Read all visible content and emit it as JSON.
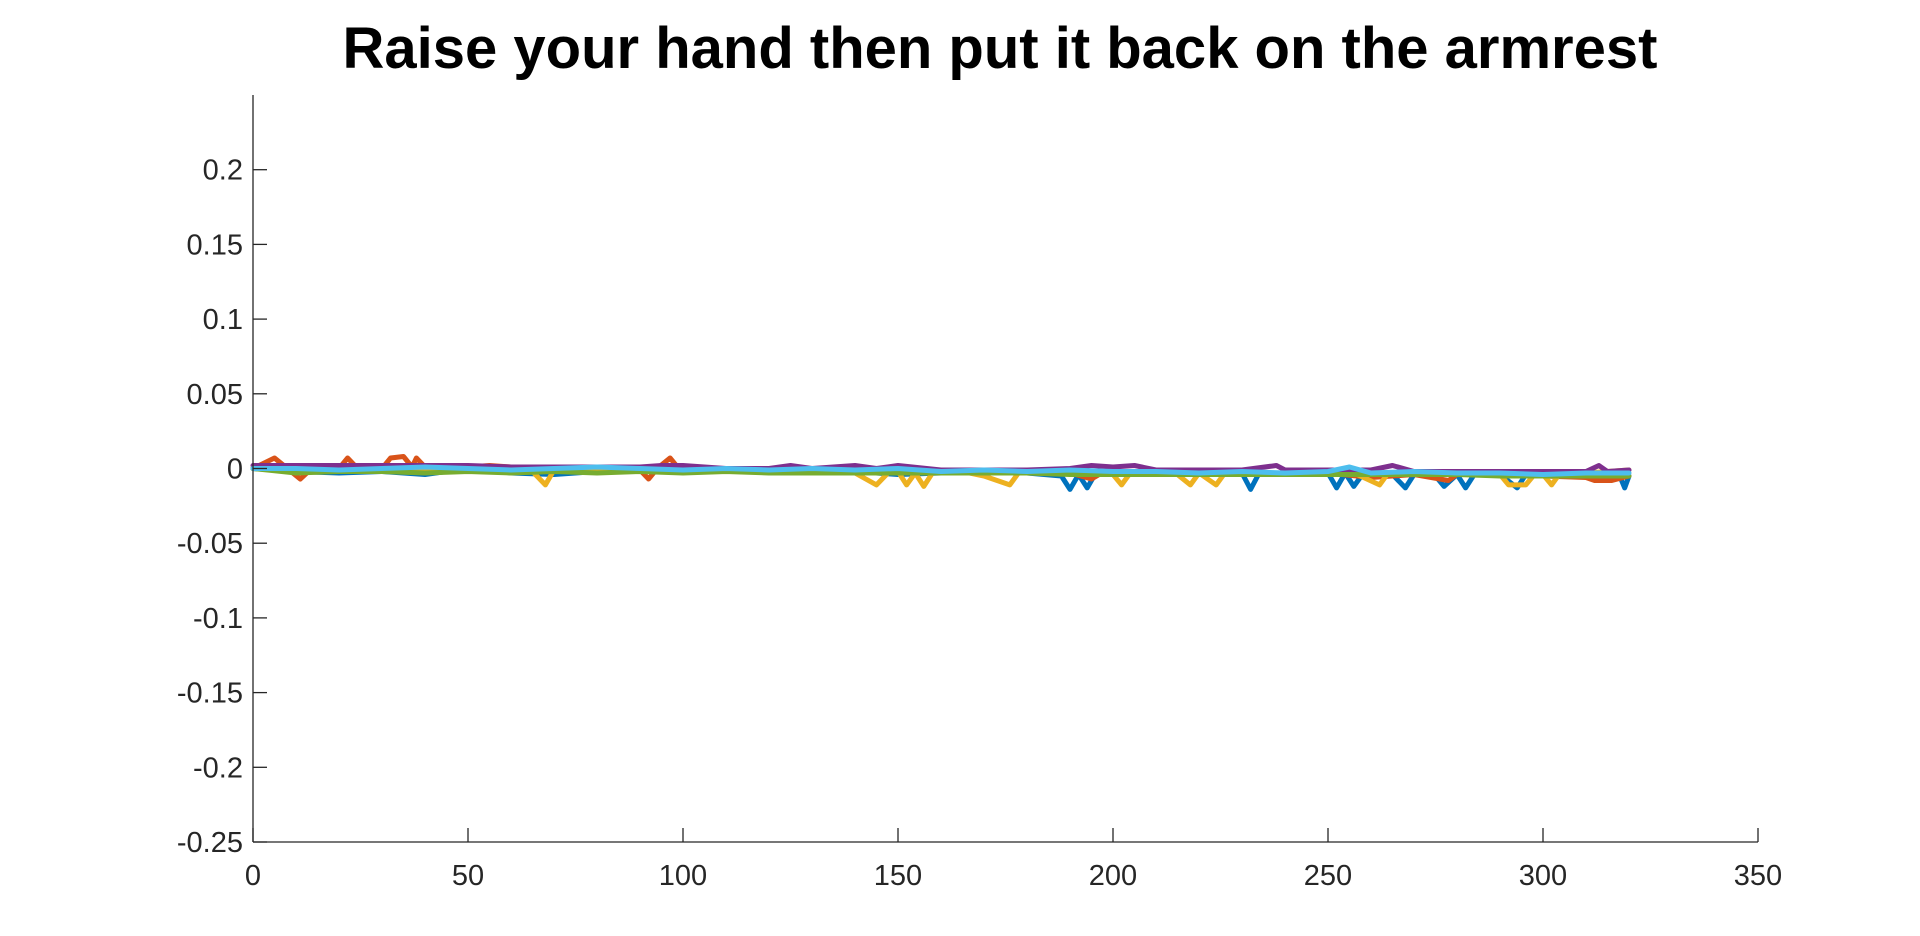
{
  "chart_data": {
    "type": "line",
    "title": "Raise your hand then put it back on the armrest",
    "xlabel": "",
    "ylabel": "",
    "xlim": [
      0,
      350
    ],
    "ylim": [
      -0.25,
      0.25
    ],
    "xticks": [
      0,
      50,
      100,
      150,
      200,
      250,
      300,
      350
    ],
    "yticks": [
      -0.25,
      -0.2,
      -0.15,
      -0.1,
      -0.05,
      0,
      0.05,
      0.1,
      0.15,
      0.2
    ],
    "xtick_labels": [
      "0",
      "50",
      "100",
      "150",
      "200",
      "250",
      "300",
      "350"
    ],
    "ytick_labels": [
      "-0.25",
      "-0.2",
      "-0.15",
      "-0.1",
      "-0.05",
      "0",
      "0.05",
      "0.1",
      "0.15",
      "0.2"
    ],
    "grid": false,
    "legend": "none",
    "series": [
      {
        "color": "#0072BD",
        "points": [
          [
            0,
            0
          ],
          [
            10,
            -0.002
          ],
          [
            20,
            -0.003
          ],
          [
            30,
            -0.002
          ],
          [
            40,
            -0.004
          ],
          [
            50,
            0
          ],
          [
            60,
            -0.003
          ],
          [
            70,
            -0.004
          ],
          [
            80,
            -0.002
          ],
          [
            90,
            -0.001
          ],
          [
            100,
            -0.002
          ],
          [
            110,
            -0.001
          ],
          [
            120,
            -0.002
          ],
          [
            130,
            -0.003
          ],
          [
            140,
            -0.002
          ],
          [
            150,
            -0.004
          ],
          [
            160,
            -0.003
          ],
          [
            170,
            -0.002
          ],
          [
            180,
            -0.003
          ],
          [
            188,
            -0.005
          ],
          [
            190,
            -0.014
          ],
          [
            192,
            -0.004
          ],
          [
            194,
            -0.013
          ],
          [
            196,
            -0.003
          ],
          [
            200,
            -0.004
          ],
          [
            210,
            -0.003
          ],
          [
            220,
            -0.004
          ],
          [
            230,
            -0.003
          ],
          [
            232,
            -0.014
          ],
          [
            234,
            -0.003
          ],
          [
            240,
            -0.004
          ],
          [
            250,
            -0.003
          ],
          [
            252,
            -0.013
          ],
          [
            254,
            -0.003
          ],
          [
            256,
            -0.012
          ],
          [
            258,
            -0.004
          ],
          [
            265,
            -0.004
          ],
          [
            268,
            -0.013
          ],
          [
            270,
            -0.004
          ],
          [
            275,
            -0.005
          ],
          [
            277,
            -0.012
          ],
          [
            280,
            -0.004
          ],
          [
            282,
            -0.013
          ],
          [
            284,
            -0.004
          ],
          [
            290,
            -0.004
          ],
          [
            294,
            -0.013
          ],
          [
            296,
            -0.004
          ],
          [
            300,
            -0.005
          ],
          [
            310,
            -0.004
          ],
          [
            318,
            -0.006
          ],
          [
            319,
            -0.013
          ],
          [
            320,
            -0.005
          ]
        ]
      },
      {
        "color": "#D95319",
        "points": [
          [
            0,
            0
          ],
          [
            5,
            0.007
          ],
          [
            8,
            0
          ],
          [
            11,
            -0.007
          ],
          [
            14,
            0.001
          ],
          [
            20,
            0
          ],
          [
            22,
            0.007
          ],
          [
            24,
            0.001
          ],
          [
            30,
            0
          ],
          [
            32,
            0.007
          ],
          [
            35,
            0.008
          ],
          [
            37,
            0.001
          ],
          [
            38,
            0.007
          ],
          [
            40,
            0.001
          ],
          [
            50,
            0.001
          ],
          [
            55,
            0.002
          ],
          [
            60,
            0.001
          ],
          [
            70,
            0
          ],
          [
            80,
            0
          ],
          [
            90,
            -0.001
          ],
          [
            92,
            -0.007
          ],
          [
            94,
            0
          ],
          [
            97,
            0.007
          ],
          [
            99,
            0
          ],
          [
            110,
            -0.001
          ],
          [
            120,
            -0.001
          ],
          [
            130,
            -0.001
          ],
          [
            140,
            -0.002
          ],
          [
            150,
            -0.002
          ],
          [
            160,
            -0.002
          ],
          [
            170,
            -0.002
          ],
          [
            180,
            -0.002
          ],
          [
            190,
            -0.003
          ],
          [
            195,
            -0.007
          ],
          [
            198,
            -0.002
          ],
          [
            210,
            -0.002
          ],
          [
            220,
            -0.003
          ],
          [
            230,
            -0.003
          ],
          [
            240,
            -0.004
          ],
          [
            250,
            -0.003
          ],
          [
            260,
            -0.006
          ],
          [
            270,
            -0.004
          ],
          [
            278,
            -0.008
          ],
          [
            280,
            -0.004
          ],
          [
            290,
            -0.004
          ],
          [
            300,
            -0.005
          ],
          [
            310,
            -0.006
          ],
          [
            312,
            -0.008
          ],
          [
            316,
            -0.008
          ],
          [
            320,
            -0.005
          ]
        ]
      },
      {
        "color": "#EDB120",
        "points": [
          [
            0,
            0
          ],
          [
            10,
            -0.001
          ],
          [
            20,
            0
          ],
          [
            30,
            -0.001
          ],
          [
            40,
            0
          ],
          [
            50,
            0.001
          ],
          [
            60,
            0
          ],
          [
            65,
            -0.002
          ],
          [
            68,
            -0.011
          ],
          [
            70,
            -0.001
          ],
          [
            80,
            0
          ],
          [
            90,
            -0.002
          ],
          [
            100,
            -0.001
          ],
          [
            110,
            -0.001
          ],
          [
            120,
            -0.002
          ],
          [
            130,
            -0.001
          ],
          [
            140,
            -0.003
          ],
          [
            145,
            -0.011
          ],
          [
            148,
            -0.002
          ],
          [
            150,
            -0.002
          ],
          [
            152,
            -0.011
          ],
          [
            154,
            -0.003
          ],
          [
            156,
            -0.012
          ],
          [
            158,
            -0.003
          ],
          [
            165,
            -0.002
          ],
          [
            170,
            -0.005
          ],
          [
            176,
            -0.011
          ],
          [
            178,
            -0.003
          ],
          [
            190,
            -0.003
          ],
          [
            200,
            -0.004
          ],
          [
            202,
            -0.011
          ],
          [
            204,
            -0.003
          ],
          [
            210,
            -0.003
          ],
          [
            215,
            -0.004
          ],
          [
            218,
            -0.011
          ],
          [
            220,
            -0.003
          ],
          [
            224,
            -0.011
          ],
          [
            226,
            -0.003
          ],
          [
            240,
            -0.003
          ],
          [
            250,
            -0.004
          ],
          [
            256,
            -0.003
          ],
          [
            262,
            -0.011
          ],
          [
            264,
            -0.003
          ],
          [
            270,
            -0.004
          ],
          [
            280,
            -0.003
          ],
          [
            290,
            -0.004
          ],
          [
            292,
            -0.011
          ],
          [
            296,
            -0.011
          ],
          [
            298,
            -0.004
          ],
          [
            300,
            -0.004
          ],
          [
            302,
            -0.011
          ],
          [
            304,
            -0.003
          ],
          [
            310,
            -0.003
          ],
          [
            320,
            -0.001
          ]
        ]
      },
      {
        "color": "#7E2F8E",
        "points": [
          [
            0,
            0.002
          ],
          [
            10,
            0.002
          ],
          [
            20,
            0.002
          ],
          [
            30,
            0.002
          ],
          [
            40,
            0.002
          ],
          [
            50,
            0.002
          ],
          [
            60,
            0.001
          ],
          [
            70,
            0.001
          ],
          [
            80,
            0.001
          ],
          [
            90,
            0.001
          ],
          [
            95,
            0.002
          ],
          [
            100,
            0.002
          ],
          [
            110,
            0
          ],
          [
            120,
            0
          ],
          [
            125,
            0.002
          ],
          [
            130,
            0
          ],
          [
            140,
            0.002
          ],
          [
            145,
            0
          ],
          [
            150,
            0.002
          ],
          [
            160,
            -0.001
          ],
          [
            170,
            -0.001
          ],
          [
            180,
            -0.001
          ],
          [
            190,
            0
          ],
          [
            195,
            0.002
          ],
          [
            200,
            0.001
          ],
          [
            205,
            0.002
          ],
          [
            210,
            -0.001
          ],
          [
            220,
            -0.001
          ],
          [
            230,
            -0.001
          ],
          [
            238,
            0.002
          ],
          [
            240,
            -0.001
          ],
          [
            250,
            -0.001
          ],
          [
            260,
            -0.001
          ],
          [
            265,
            0.002
          ],
          [
            270,
            -0.002
          ],
          [
            280,
            -0.002
          ],
          [
            290,
            -0.002
          ],
          [
            300,
            -0.002
          ],
          [
            310,
            -0.002
          ],
          [
            313,
            0.002
          ],
          [
            315,
            -0.002
          ],
          [
            320,
            -0.001
          ]
        ]
      },
      {
        "color": "#77AC30",
        "points": [
          [
            0,
            0
          ],
          [
            10,
            -0.003
          ],
          [
            20,
            -0.002
          ],
          [
            30,
            -0.002
          ],
          [
            40,
            -0.003
          ],
          [
            50,
            -0.002
          ],
          [
            60,
            -0.003
          ],
          [
            70,
            -0.002
          ],
          [
            80,
            -0.003
          ],
          [
            90,
            -0.002
          ],
          [
            100,
            -0.003
          ],
          [
            110,
            -0.002
          ],
          [
            120,
            -0.003
          ],
          [
            130,
            -0.003
          ],
          [
            140,
            -0.003
          ],
          [
            150,
            -0.003
          ],
          [
            160,
            -0.003
          ],
          [
            170,
            -0.003
          ],
          [
            180,
            -0.003
          ],
          [
            190,
            -0.004
          ],
          [
            200,
            -0.004
          ],
          [
            210,
            -0.004
          ],
          [
            220,
            -0.004
          ],
          [
            230,
            -0.004
          ],
          [
            240,
            -0.004
          ],
          [
            250,
            -0.004
          ],
          [
            260,
            -0.004
          ],
          [
            270,
            -0.004
          ],
          [
            280,
            -0.004
          ],
          [
            290,
            -0.005
          ],
          [
            300,
            -0.005
          ],
          [
            310,
            -0.005
          ],
          [
            320,
            -0.005
          ]
        ]
      },
      {
        "color": "#4DBEEE",
        "points": [
          [
            0,
            0
          ],
          [
            10,
            0
          ],
          [
            20,
            -0.001
          ],
          [
            30,
            0
          ],
          [
            40,
            0.001
          ],
          [
            50,
            0
          ],
          [
            60,
            -0.001
          ],
          [
            70,
            0
          ],
          [
            80,
            0.001
          ],
          [
            90,
            0
          ],
          [
            100,
            -0.001
          ],
          [
            110,
            0
          ],
          [
            120,
            -0.001
          ],
          [
            130,
            0
          ],
          [
            140,
            -0.001
          ],
          [
            150,
            0
          ],
          [
            160,
            -0.002
          ],
          [
            170,
            -0.001
          ],
          [
            180,
            -0.002
          ],
          [
            190,
            -0.001
          ],
          [
            200,
            -0.002
          ],
          [
            210,
            -0.002
          ],
          [
            220,
            -0.003
          ],
          [
            230,
            -0.002
          ],
          [
            240,
            -0.003
          ],
          [
            250,
            -0.002
          ],
          [
            255,
            0.001
          ],
          [
            260,
            -0.003
          ],
          [
            270,
            -0.002
          ],
          [
            280,
            -0.003
          ],
          [
            290,
            -0.003
          ],
          [
            300,
            -0.004
          ],
          [
            310,
            -0.003
          ],
          [
            320,
            -0.003
          ]
        ]
      }
    ]
  }
}
